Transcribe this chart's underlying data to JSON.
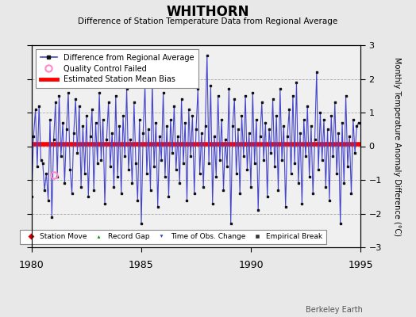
{
  "title": "WHITHORN",
  "subtitle": "Difference of Station Temperature Data from Regional Average",
  "ylabel": "Monthly Temperature Anomaly Difference (°C)",
  "xlim": [
    1980,
    1995
  ],
  "ylim": [
    -3,
    3
  ],
  "bias": 0.05,
  "background_color": "#e8e8e8",
  "plot_bg_color": "#f0f0f0",
  "line_color": "#4444cc",
  "marker_color": "#111111",
  "bias_color": "#ff0000",
  "qc_fail_x": [
    1981.0
  ],
  "qc_fail_y": [
    -0.85
  ],
  "data": [
    [
      1980.0,
      -1.5
    ],
    [
      1980.083,
      0.3
    ],
    [
      1980.167,
      1.1
    ],
    [
      1980.25,
      -0.6
    ],
    [
      1980.333,
      1.2
    ],
    [
      1980.417,
      -0.4
    ],
    [
      1980.5,
      -0.5
    ],
    [
      1980.583,
      -1.3
    ],
    [
      1980.667,
      -0.8
    ],
    [
      1980.75,
      -1.6
    ],
    [
      1980.833,
      0.8
    ],
    [
      1980.917,
      -2.1
    ],
    [
      1981.0,
      0.2
    ],
    [
      1981.083,
      1.3
    ],
    [
      1981.167,
      -0.9
    ],
    [
      1981.25,
      1.5
    ],
    [
      1981.333,
      -0.3
    ],
    [
      1981.417,
      0.7
    ],
    [
      1981.5,
      -1.1
    ],
    [
      1981.583,
      0.5
    ],
    [
      1981.667,
      1.6
    ],
    [
      1981.75,
      -0.7
    ],
    [
      1981.833,
      -1.4
    ],
    [
      1981.917,
      0.4
    ],
    [
      1982.0,
      1.4
    ],
    [
      1982.083,
      -0.2
    ],
    [
      1982.167,
      1.2
    ],
    [
      1982.25,
      -1.2
    ],
    [
      1982.333,
      0.6
    ],
    [
      1982.417,
      -0.8
    ],
    [
      1982.5,
      0.9
    ],
    [
      1982.583,
      -1.5
    ],
    [
      1982.667,
      0.3
    ],
    [
      1982.75,
      1.1
    ],
    [
      1982.833,
      -1.3
    ],
    [
      1982.917,
      0.7
    ],
    [
      1983.0,
      -0.5
    ],
    [
      1983.083,
      1.6
    ],
    [
      1983.167,
      -0.4
    ],
    [
      1983.25,
      0.8
    ],
    [
      1983.333,
      -1.7
    ],
    [
      1983.417,
      0.2
    ],
    [
      1983.5,
      1.3
    ],
    [
      1983.583,
      -0.6
    ],
    [
      1983.667,
      0.4
    ],
    [
      1983.75,
      -1.2
    ],
    [
      1983.833,
      1.5
    ],
    [
      1983.917,
      -0.9
    ],
    [
      1984.0,
      0.6
    ],
    [
      1984.083,
      -1.4
    ],
    [
      1984.167,
      0.9
    ],
    [
      1984.25,
      -0.3
    ],
    [
      1984.333,
      1.7
    ],
    [
      1984.417,
      -0.7
    ],
    [
      1984.5,
      0.2
    ],
    [
      1984.583,
      -1.1
    ],
    [
      1984.667,
      1.3
    ],
    [
      1984.75,
      -0.5
    ],
    [
      1984.833,
      -1.6
    ],
    [
      1984.917,
      0.8
    ],
    [
      1985.0,
      -2.3
    ],
    [
      1985.083,
      0.4
    ],
    [
      1985.167,
      1.8
    ],
    [
      1985.25,
      -0.8
    ],
    [
      1985.333,
      0.5
    ],
    [
      1985.417,
      -1.3
    ],
    [
      1985.5,
      1.9
    ],
    [
      1985.583,
      -0.6
    ],
    [
      1985.667,
      0.7
    ],
    [
      1985.75,
      -1.8
    ],
    [
      1985.833,
      0.3
    ],
    [
      1985.917,
      -0.4
    ],
    [
      1986.0,
      1.6
    ],
    [
      1986.083,
      -0.9
    ],
    [
      1986.167,
      0.6
    ],
    [
      1986.25,
      -1.5
    ],
    [
      1986.333,
      0.8
    ],
    [
      1986.417,
      -0.2
    ],
    [
      1986.5,
      1.2
    ],
    [
      1986.583,
      -0.7
    ],
    [
      1986.667,
      0.3
    ],
    [
      1986.75,
      -1.1
    ],
    [
      1986.833,
      1.4
    ],
    [
      1986.917,
      -0.5
    ],
    [
      1987.0,
      0.7
    ],
    [
      1987.083,
      -1.6
    ],
    [
      1987.167,
      1.1
    ],
    [
      1987.25,
      -0.3
    ],
    [
      1987.333,
      0.9
    ],
    [
      1987.417,
      -1.4
    ],
    [
      1987.5,
      0.5
    ],
    [
      1987.583,
      1.7
    ],
    [
      1987.667,
      -0.8
    ],
    [
      1987.75,
      0.4
    ],
    [
      1987.833,
      -1.2
    ],
    [
      1987.917,
      0.6
    ],
    [
      1988.0,
      2.7
    ],
    [
      1988.083,
      -0.5
    ],
    [
      1988.167,
      1.8
    ],
    [
      1988.25,
      -1.7
    ],
    [
      1988.333,
      0.3
    ],
    [
      1988.417,
      -0.9
    ],
    [
      1988.5,
      1.5
    ],
    [
      1988.583,
      -0.4
    ],
    [
      1988.667,
      0.8
    ],
    [
      1988.75,
      -1.3
    ],
    [
      1988.833,
      0.2
    ],
    [
      1988.917,
      -0.6
    ],
    [
      1989.0,
      1.7
    ],
    [
      1989.083,
      -2.3
    ],
    [
      1989.167,
      0.6
    ],
    [
      1989.25,
      1.4
    ],
    [
      1989.333,
      -0.8
    ],
    [
      1989.417,
      0.5
    ],
    [
      1989.5,
      -1.4
    ],
    [
      1989.583,
      0.9
    ],
    [
      1989.667,
      -0.3
    ],
    [
      1989.75,
      1.5
    ],
    [
      1989.833,
      -0.7
    ],
    [
      1989.917,
      0.4
    ],
    [
      1990.0,
      -1.2
    ],
    [
      1990.083,
      1.6
    ],
    [
      1990.167,
      -0.5
    ],
    [
      1990.25,
      0.8
    ],
    [
      1990.333,
      -1.9
    ],
    [
      1990.417,
      0.3
    ],
    [
      1990.5,
      1.3
    ],
    [
      1990.583,
      -0.4
    ],
    [
      1990.667,
      0.7
    ],
    [
      1990.75,
      -1.5
    ],
    [
      1990.833,
      0.5
    ],
    [
      1990.917,
      -0.2
    ],
    [
      1991.0,
      1.4
    ],
    [
      1991.083,
      -0.6
    ],
    [
      1991.167,
      0.9
    ],
    [
      1991.25,
      -1.3
    ],
    [
      1991.333,
      1.7
    ],
    [
      1991.417,
      -0.4
    ],
    [
      1991.5,
      0.6
    ],
    [
      1991.583,
      -1.8
    ],
    [
      1991.667,
      0.3
    ],
    [
      1991.75,
      1.1
    ],
    [
      1991.833,
      -0.8
    ],
    [
      1991.917,
      1.5
    ],
    [
      1992.0,
      -0.5
    ],
    [
      1992.083,
      1.9
    ],
    [
      1992.167,
      -1.1
    ],
    [
      1992.25,
      0.4
    ],
    [
      1992.333,
      -1.7
    ],
    [
      1992.417,
      0.8
    ],
    [
      1992.5,
      -0.3
    ],
    [
      1992.583,
      1.2
    ],
    [
      1992.667,
      -0.9
    ],
    [
      1992.75,
      0.6
    ],
    [
      1992.833,
      -1.4
    ],
    [
      1992.917,
      0.2
    ],
    [
      1993.0,
      2.2
    ],
    [
      1993.083,
      -0.7
    ],
    [
      1993.167,
      1.0
    ],
    [
      1993.25,
      -0.4
    ],
    [
      1993.333,
      0.8
    ],
    [
      1993.417,
      -1.2
    ],
    [
      1993.5,
      0.5
    ],
    [
      1993.583,
      -1.6
    ],
    [
      1993.667,
      0.9
    ],
    [
      1993.75,
      -0.3
    ],
    [
      1993.833,
      1.3
    ],
    [
      1993.917,
      -0.8
    ],
    [
      1994.0,
      0.4
    ],
    [
      1994.083,
      -2.3
    ],
    [
      1994.167,
      0.7
    ],
    [
      1994.25,
      -1.1
    ],
    [
      1994.333,
      1.5
    ],
    [
      1994.417,
      -0.6
    ],
    [
      1994.5,
      0.3
    ],
    [
      1994.583,
      -1.4
    ],
    [
      1994.667,
      0.8
    ],
    [
      1994.75,
      -0.2
    ],
    [
      1994.833,
      0.6
    ],
    [
      1994.917,
      0.7
    ]
  ],
  "legend2_items": [
    {
      "label": "Station Move",
      "color": "#cc0000",
      "marker": "D"
    },
    {
      "label": "Record Gap",
      "color": "#008800",
      "marker": "^"
    },
    {
      "label": "Time of Obs. Change",
      "color": "#2244cc",
      "marker": "v"
    },
    {
      "label": "Empirical Break",
      "color": "#333333",
      "marker": "s"
    }
  ],
  "watermark": "Berkeley Earth",
  "xticks": [
    1980,
    1985,
    1990,
    1995
  ],
  "yticks": [
    -3,
    -2,
    -1,
    0,
    1,
    2,
    3
  ]
}
